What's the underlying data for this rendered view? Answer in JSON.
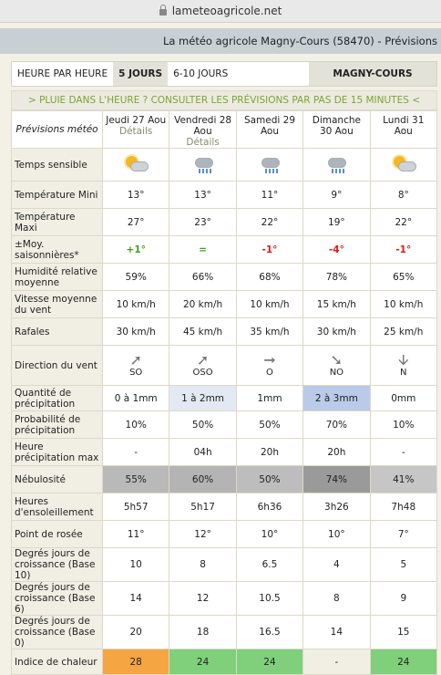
{
  "browser": {
    "url": "lameteoagricole.net"
  },
  "site": {
    "title": "La météo agricole Magny-Cours (58470) - Prévisions"
  },
  "tabs": {
    "hourly": "HEURE PAR HEURE",
    "five_days": "5 JOURS",
    "six_ten": "6-10 JOURS",
    "location": "MAGNY-COURS"
  },
  "rain_link": "> PLUIE DANS L'HEURE ? CONSULTER LES PRÉVISIONS PAR PAS DE 15 MINUTES <",
  "table": {
    "header_label": "Prévisions météo",
    "days": [
      {
        "name": "Jeudi 27 Aou",
        "link": "Détails"
      },
      {
        "name": "Vendredi 28 Aou",
        "link": "Détails"
      },
      {
        "name": "Samedi 29 Aou",
        "link": ""
      },
      {
        "name": "Dimanche 30 Aou",
        "link": ""
      },
      {
        "name": "Lundi 31 Aou",
        "link": ""
      }
    ],
    "rows": {
      "sky": {
        "label": "Temps sensible",
        "icons": [
          "sun-cloud-icon",
          "rain-cloud-icon",
          "rain-cloud-icon",
          "rain-cloud-icon",
          "sun-cloud-icon"
        ]
      },
      "tmin": {
        "label": "Température Mini",
        "values": [
          "13°",
          "13°",
          "11°",
          "9°",
          "8°"
        ]
      },
      "tmax": {
        "label": "Température Maxi",
        "values": [
          "27°",
          "23°",
          "22°",
          "19°",
          "22°"
        ]
      },
      "anom": {
        "label": "±Moy. saisonnières*",
        "values": [
          "+1°",
          "=",
          "-1°",
          "-4°",
          "-1°"
        ]
      },
      "hum": {
        "label": "Humidité relative moyenne",
        "values": [
          "59%",
          "66%",
          "68%",
          "78%",
          "65%"
        ]
      },
      "wind": {
        "label": "Vitesse moyenne du vent",
        "values": [
          "10 km/h",
          "20 km/h",
          "10 km/h",
          "15 km/h",
          "10 km/h"
        ]
      },
      "gust": {
        "label": "Rafales",
        "values": [
          "30 km/h",
          "45 km/h",
          "35 km/h",
          "30 km/h",
          "25 km/h"
        ]
      },
      "dir": {
        "label": "Direction du vent",
        "values": [
          "SO",
          "OSO",
          "O",
          "NO",
          "N"
        ],
        "arrows": [
          "➚",
          "➚",
          "➞",
          "➘",
          "🡫"
        ]
      },
      "precip": {
        "label": "Quantité de précipitation",
        "values": [
          "0 à 1mm",
          "1 à 2mm",
          "1mm",
          "2 à 3mm",
          "0mm"
        ]
      },
      "prob": {
        "label": "Probabilité de précipitation",
        "values": [
          "10%",
          "50%",
          "50%",
          "70%",
          "10%"
        ]
      },
      "hmax": {
        "label": "Heure précipitation max",
        "values": [
          "-",
          "04h",
          "20h",
          "20h",
          "-"
        ]
      },
      "cloud": {
        "label": "Nébulosité",
        "values": [
          "55%",
          "60%",
          "50%",
          "74%",
          "41%"
        ],
        "colors": [
          "#b9b9b9",
          "#b4b4b4",
          "#bdbdbd",
          "#9a9a9a",
          "#c6c6c6"
        ]
      },
      "sun": {
        "label": "Heures d'ensoleillement",
        "values": [
          "5h57",
          "5h17",
          "6h36",
          "3h26",
          "7h48"
        ]
      },
      "dew": {
        "label": "Point de rosée",
        "values": [
          "11°",
          "12°",
          "10°",
          "10°",
          "7°"
        ]
      },
      "gdd10": {
        "label": "Degrés jours de croissance (Base 10)",
        "values": [
          "10",
          "8",
          "6.5",
          "4",
          "5"
        ]
      },
      "gdd6": {
        "label": "Degrés jours de croissance (Base 6)",
        "values": [
          "14",
          "12",
          "10.5",
          "8",
          "9"
        ]
      },
      "gdd0": {
        "label": "Degrés jours de croissance (Base 0)",
        "values": [
          "20",
          "18",
          "16.5",
          "14",
          "15"
        ]
      },
      "heat": {
        "label": "Indice de chaleur",
        "values": [
          "28",
          "24",
          "24",
          "-",
          "24"
        ],
        "colors": [
          "#f6a543",
          "#7fcf7b",
          "#7fcf7b",
          "#f1efe4",
          "#7fcf7b"
        ]
      }
    }
  }
}
